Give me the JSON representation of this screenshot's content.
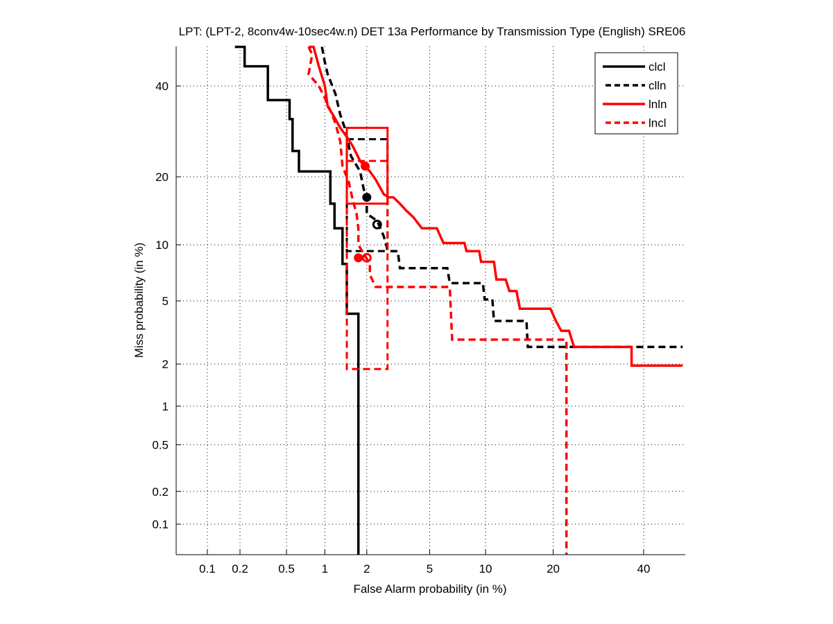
{
  "chart_data": {
    "type": "line",
    "title": "LPT: (LPT-2, 8conv4w-10sec4w.n) DET 13a Performance by Transmission Type (English) SRE06",
    "xlabel": "False Alarm probability (in %)",
    "ylabel": "Miss probability (in %)",
    "x_scale": "probit",
    "y_scale": "probit",
    "xlim": [
      0.05,
      50
    ],
    "ylim": [
      0.05,
      50
    ],
    "xticks": [
      "0.1",
      "0.2",
      "0.5",
      "1",
      "2",
      "5",
      "10",
      "20",
      "40"
    ],
    "yticks": [
      "0.1",
      "0.2",
      "0.5",
      "1",
      "2",
      "5",
      "10",
      "20",
      "40"
    ],
    "grid": true,
    "legend": {
      "position": "top-right",
      "entries": [
        {
          "label": "clcl",
          "color": "#000000",
          "style": "solid"
        },
        {
          "label": "clln",
          "color": "#000000",
          "style": "dashed"
        },
        {
          "label": "lnln",
          "color": "#ff0000",
          "style": "solid"
        },
        {
          "label": "lncl",
          "color": "#ff0000",
          "style": "dashed"
        }
      ]
    },
    "series": [
      {
        "name": "clcl",
        "color": "#000000",
        "style": "solid",
        "points": [
          [
            0.18,
            50
          ],
          [
            0.22,
            50
          ],
          [
            0.22,
            45
          ],
          [
            0.35,
            45
          ],
          [
            0.35,
            36.5
          ],
          [
            0.53,
            36.5
          ],
          [
            0.53,
            32
          ],
          [
            0.56,
            32
          ],
          [
            0.56,
            25
          ],
          [
            0.63,
            25
          ],
          [
            0.63,
            21
          ],
          [
            1.1,
            21
          ],
          [
            1.1,
            15.5
          ],
          [
            1.18,
            15.5
          ],
          [
            1.18,
            12
          ],
          [
            1.35,
            12
          ],
          [
            1.35,
            8
          ],
          [
            1.45,
            8
          ],
          [
            1.45,
            4.2
          ],
          [
            1.75,
            4.2
          ],
          [
            1.75,
            0.05
          ]
        ],
        "actual_dcf_marker": null,
        "min_dcf_marker": null
      },
      {
        "name": "clln",
        "color": "#000000",
        "style": "dashed",
        "points": [
          [
            0.95,
            50
          ],
          [
            1.0,
            46
          ],
          [
            1.05,
            43
          ],
          [
            1.2,
            38
          ],
          [
            1.3,
            33
          ],
          [
            1.4,
            30
          ],
          [
            1.5,
            26
          ],
          [
            1.55,
            24
          ],
          [
            1.8,
            21
          ],
          [
            1.9,
            18
          ],
          [
            2.0,
            16
          ],
          [
            2.0,
            14
          ],
          [
            2.35,
            13
          ],
          [
            2.6,
            11
          ],
          [
            2.7,
            10
          ],
          [
            2.75,
            9.3
          ],
          [
            3.2,
            9.3
          ],
          [
            3.3,
            7.6
          ],
          [
            6.3,
            7.6
          ],
          [
            6.5,
            6.3
          ],
          [
            9.7,
            6.3
          ],
          [
            9.9,
            5.1
          ],
          [
            10.8,
            5.1
          ],
          [
            11.0,
            3.8
          ],
          [
            15.5,
            3.8
          ],
          [
            15.7,
            2.6
          ],
          [
            50,
            2.6
          ]
        ],
        "box": {
          "x": [
            1.45,
            2.75
          ],
          "y": [
            9.3,
            27.5
          ]
        },
        "actual_dcf_marker": [
          2.0,
          16.5
        ],
        "min_dcf_marker": [
          2.35,
          12.5
        ]
      },
      {
        "name": "lnln",
        "color": "#ff0000",
        "style": "solid",
        "points": [
          [
            0.75,
            50
          ],
          [
            0.82,
            50
          ],
          [
            0.9,
            45
          ],
          [
            1.0,
            40
          ],
          [
            1.05,
            35
          ],
          [
            1.15,
            33
          ],
          [
            1.3,
            30
          ],
          [
            1.45,
            28
          ],
          [
            1.6,
            26
          ],
          [
            1.8,
            23
          ],
          [
            2.1,
            21
          ],
          [
            2.3,
            19.5
          ],
          [
            2.6,
            17
          ],
          [
            2.8,
            16.5
          ],
          [
            3.0,
            16.5
          ],
          [
            3.3,
            15.5
          ],
          [
            3.6,
            14.5
          ],
          [
            4.0,
            13.5
          ],
          [
            4.5,
            12
          ],
          [
            5.5,
            12
          ],
          [
            6.0,
            10.2
          ],
          [
            7.8,
            10.2
          ],
          [
            8.0,
            9.3
          ],
          [
            9.3,
            9.3
          ],
          [
            9.5,
            8.2
          ],
          [
            11.0,
            8.2
          ],
          [
            11.3,
            6.6
          ],
          [
            12.5,
            6.6
          ],
          [
            13.0,
            5.7
          ],
          [
            14.0,
            5.7
          ],
          [
            14.5,
            4.5
          ],
          [
            19.5,
            4.5
          ],
          [
            20.5,
            3.8
          ],
          [
            21.5,
            3.3
          ],
          [
            23,
            3.3
          ],
          [
            24,
            2.6
          ],
          [
            37,
            2.6
          ],
          [
            37,
            1.95
          ],
          [
            50,
            1.95
          ]
        ],
        "box": {
          "x": [
            1.45,
            2.75
          ],
          "y": [
            15.5,
            30
          ]
        },
        "actual_dcf_marker": [
          1.95,
          22
        ],
        "min_dcf_marker": null
      },
      {
        "name": "lncl",
        "color": "#ff0000",
        "style": "dashed",
        "points": [
          [
            0.75,
            50
          ],
          [
            0.8,
            48
          ],
          [
            0.75,
            43
          ],
          [
            0.9,
            40
          ],
          [
            1.0,
            37
          ],
          [
            1.1,
            34
          ],
          [
            1.2,
            31
          ],
          [
            1.3,
            27
          ],
          [
            1.35,
            22
          ],
          [
            1.5,
            19
          ],
          [
            1.6,
            16
          ],
          [
            1.7,
            14
          ],
          [
            1.75,
            12
          ],
          [
            1.75,
            10
          ],
          [
            2.1,
            8
          ],
          [
            2.1,
            7
          ],
          [
            2.3,
            6
          ],
          [
            6.5,
            6
          ],
          [
            6.7,
            2.9
          ],
          [
            22.5,
            2.9
          ],
          [
            22.5,
            0.05
          ]
        ],
        "box": {
          "x": [
            1.45,
            2.75
          ],
          "y": [
            1.85,
            23
          ]
        },
        "actual_dcf_marker": [
          1.75,
          8.6
        ],
        "min_dcf_marker": [
          2.0,
          8.6
        ]
      }
    ]
  }
}
